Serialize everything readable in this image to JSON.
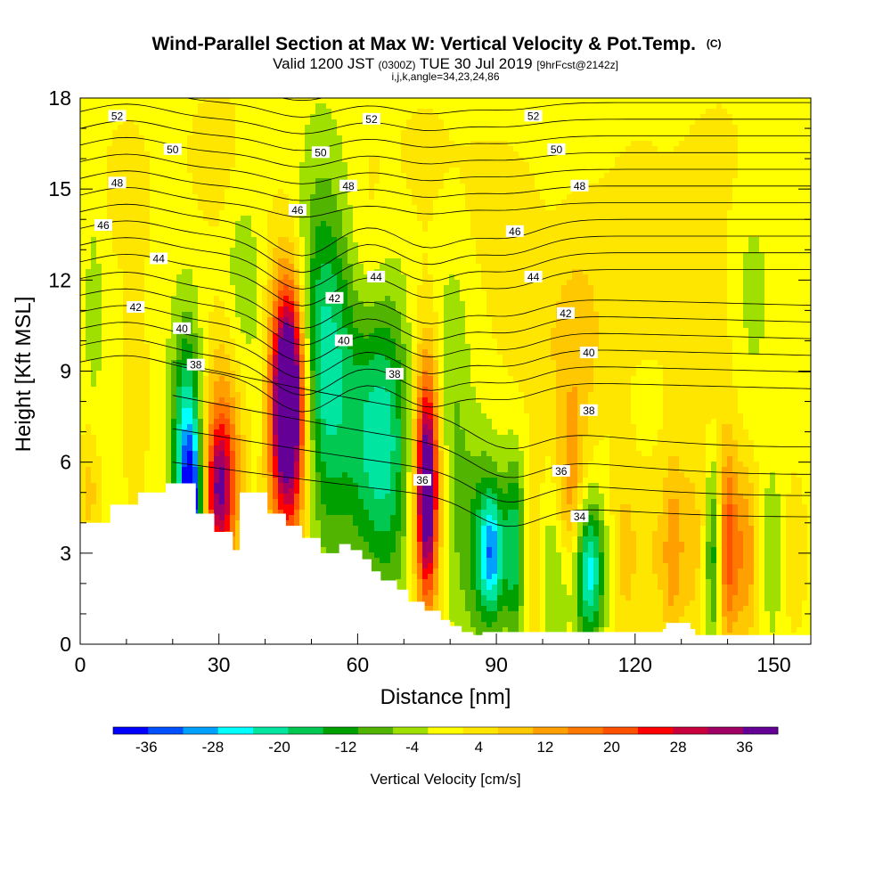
{
  "chart_data": {
    "type": "heatmap",
    "title": "Wind-Parallel Section at Max W: Vertical Velocity & Pot.Temp.",
    "title_mark": "(C)",
    "subtitle_parts": [
      "Valid 1200 JST ",
      "(0300Z)",
      " TUE 30 Jul 2019 ",
      "[9hrFcst@2142z]"
    ],
    "subtitle2": "i,j,k,angle=34,23,24,86",
    "xlabel": "Distance [nm]",
    "ylabel": "Height [Kft MSL]",
    "xlim": [
      0,
      158
    ],
    "ylim": [
      0,
      18
    ],
    "x_ticks": [
      0,
      30,
      60,
      90,
      120,
      150
    ],
    "y_ticks": [
      0,
      3,
      6,
      9,
      12,
      15,
      18
    ],
    "x_tick_labels": [
      "0",
      "30",
      "60",
      "90",
      "120",
      "150"
    ],
    "y_tick_labels": [
      "0",
      "3",
      "6",
      "9",
      "12",
      "15",
      "18"
    ],
    "colorbar": {
      "label": "Vertical Velocity [cm/s]",
      "tick_labels": [
        "-36",
        "-28",
        "-20",
        "-12",
        "-4",
        "4",
        "12",
        "20",
        "28",
        "36"
      ],
      "bounds": [
        -40,
        40
      ],
      "colors": [
        "#0000ff",
        "#0050ff",
        "#00a0ff",
        "#00ffff",
        "#00e6a0",
        "#00c850",
        "#00a000",
        "#50b400",
        "#a0e000",
        "#ffff00",
        "#ffe600",
        "#ffc800",
        "#ffa000",
        "#ff7800",
        "#ff5000",
        "#ff0000",
        "#c8003c",
        "#a00064",
        "#640096"
      ]
    },
    "potential_temperature_contours": {
      "units": "C",
      "labels": [
        {
          "text": "52",
          "x": 8,
          "y": 17.4
        },
        {
          "text": "52",
          "x": 63,
          "y": 17.3
        },
        {
          "text": "52",
          "x": 98,
          "y": 17.4
        },
        {
          "text": "50",
          "x": 20,
          "y": 16.3
        },
        {
          "text": "50",
          "x": 52,
          "y": 16.2
        },
        {
          "text": "50",
          "x": 103,
          "y": 16.3
        },
        {
          "text": "48",
          "x": 8,
          "y": 15.2
        },
        {
          "text": "48",
          "x": 58,
          "y": 15.1
        },
        {
          "text": "48",
          "x": 108,
          "y": 15.1
        },
        {
          "text": "46",
          "x": 5,
          "y": 13.8
        },
        {
          "text": "46",
          "x": 47,
          "y": 14.3
        },
        {
          "text": "46",
          "x": 94,
          "y": 13.6
        },
        {
          "text": "44",
          "x": 17,
          "y": 12.7
        },
        {
          "text": "44",
          "x": 64,
          "y": 12.1
        },
        {
          "text": "44",
          "x": 98,
          "y": 12.1
        },
        {
          "text": "42",
          "x": 12,
          "y": 11.1
        },
        {
          "text": "42",
          "x": 55,
          "y": 11.4
        },
        {
          "text": "42",
          "x": 105,
          "y": 10.9
        },
        {
          "text": "40",
          "x": 22,
          "y": 10.4
        },
        {
          "text": "40",
          "x": 57,
          "y": 10.0
        },
        {
          "text": "40",
          "x": 110,
          "y": 9.6
        },
        {
          "text": "38",
          "x": 25,
          "y": 9.2
        },
        {
          "text": "38",
          "x": 68,
          "y": 8.9
        },
        {
          "text": "38",
          "x": 110,
          "y": 7.7
        },
        {
          "text": "36",
          "x": 74,
          "y": 5.4
        },
        {
          "text": "36",
          "x": 104,
          "y": 5.7
        },
        {
          "text": "34",
          "x": 108,
          "y": 4.2
        }
      ]
    },
    "terrain": {
      "x": [
        0,
        6.5,
        6.5,
        12.5,
        12.5,
        18.5,
        18.5,
        25,
        25,
        29,
        29,
        33,
        33,
        34.5,
        34.5,
        40.5,
        40.5,
        44.5,
        44.5,
        48,
        48,
        52,
        52,
        56,
        56,
        58.5,
        58.5,
        61,
        61,
        63,
        63,
        65,
        65,
        68.5,
        68.5,
        71,
        71,
        74.5,
        74.5,
        78,
        78,
        80,
        80,
        82.5,
        82.5,
        85,
        85,
        87,
        87,
        126,
        126,
        126.7,
        126.7,
        132,
        132,
        133,
        133,
        158
      ],
      "y": [
        4.0,
        4.0,
        4.6,
        4.6,
        5.0,
        5.0,
        5.3,
        5.3,
        4.3,
        4.3,
        3.7,
        3.7,
        3.1,
        3.1,
        5.0,
        5.0,
        4.3,
        4.3,
        3.9,
        3.9,
        3.5,
        3.5,
        3.0,
        3.0,
        3.3,
        3.3,
        3.1,
        3.1,
        2.8,
        2.8,
        2.4,
        2.4,
        2.1,
        2.1,
        1.8,
        1.8,
        1.4,
        1.4,
        1.1,
        1.1,
        0.8,
        0.8,
        0.6,
        0.6,
        0.4,
        0.4,
        0.3,
        0.3,
        0.4,
        0.4,
        0.5,
        0.5,
        0.7,
        0.7,
        0.5,
        0.5,
        0.3,
        0.3
      ]
    }
  }
}
